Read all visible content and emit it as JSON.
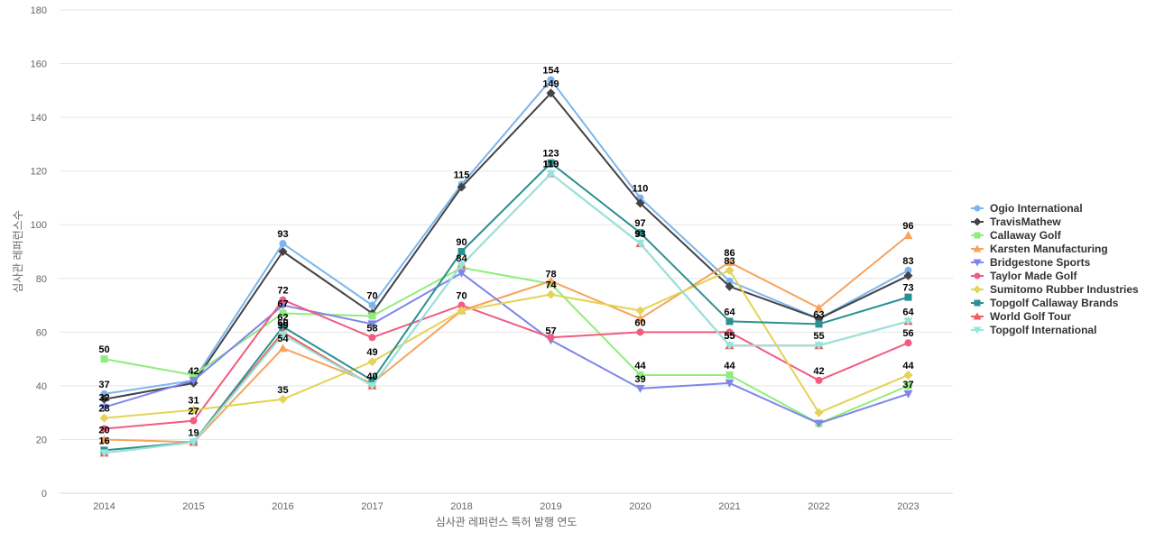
{
  "chart_data": {
    "type": "line",
    "xlabel": "심사관 레퍼런스 특허 발행 연도",
    "ylabel": "심사관 레퍼런스수",
    "ylim": [
      0,
      180
    ],
    "yticks": [
      0,
      20,
      40,
      60,
      80,
      100,
      120,
      140,
      160,
      180
    ],
    "categories": [
      "2014",
      "2015",
      "2016",
      "2017",
      "2018",
      "2019",
      "2020",
      "2021",
      "2022",
      "2023"
    ],
    "grid": true,
    "legend_position": "right",
    "series": [
      {
        "name": "Ogio International",
        "color": "#7cb5ec",
        "marker": "circle",
        "values": [
          37,
          42,
          93,
          70,
          115,
          154,
          110,
          79,
          65,
          83
        ],
        "labels": [
          true,
          true,
          true,
          true,
          true,
          true,
          true,
          false,
          false,
          true
        ]
      },
      {
        "name": "TravisMathew",
        "color": "#434348",
        "marker": "diamond",
        "values": [
          35,
          41,
          90,
          67,
          114,
          149,
          108,
          77,
          65,
          81
        ],
        "labels": [
          false,
          false,
          false,
          false,
          false,
          true,
          false,
          false,
          false,
          false
        ]
      },
      {
        "name": "Callaway Golf",
        "color": "#90ed7d",
        "marker": "square",
        "values": [
          50,
          44,
          67,
          66,
          84,
          78,
          44,
          44,
          26,
          40
        ],
        "labels": [
          true,
          false,
          true,
          false,
          true,
          true,
          true,
          true,
          false,
          false
        ]
      },
      {
        "name": "Karsten Manufacturing",
        "color": "#f7a35c",
        "marker": "triangle",
        "values": [
          20,
          19,
          54,
          41,
          68,
          79,
          65,
          86,
          69,
          96
        ],
        "labels": [
          true,
          true,
          true,
          false,
          false,
          false,
          false,
          true,
          false,
          true
        ]
      },
      {
        "name": "Bridgestone Sports",
        "color": "#8085e9",
        "marker": "triangle-down",
        "values": [
          32,
          42,
          70,
          63,
          82,
          57,
          39,
          41,
          26,
          37
        ],
        "labels": [
          true,
          false,
          false,
          false,
          false,
          true,
          true,
          false,
          false,
          true
        ]
      },
      {
        "name": "Taylor Made Golf",
        "color": "#f15c80",
        "marker": "circle",
        "values": [
          24,
          27,
          72,
          58,
          70,
          58,
          60,
          60,
          42,
          56
        ],
        "labels": [
          false,
          true,
          true,
          true,
          true,
          false,
          true,
          false,
          true,
          true
        ]
      },
      {
        "name": "Sumitomo Rubber Industries",
        "color": "#e4d354",
        "marker": "diamond",
        "values": [
          28,
          31,
          35,
          49,
          68,
          74,
          68,
          83,
          30,
          44
        ],
        "labels": [
          true,
          true,
          true,
          true,
          false,
          true,
          false,
          true,
          false,
          true
        ]
      },
      {
        "name": "Topgolf Callaway Brands",
        "color": "#2b908f",
        "marker": "square",
        "values": [
          16,
          19,
          62,
          42,
          90,
          123,
          97,
          64,
          63,
          73
        ],
        "labels": [
          true,
          false,
          true,
          false,
          true,
          true,
          true,
          true,
          true,
          true
        ]
      },
      {
        "name": "World Golf Tour",
        "color": "#f45b5b",
        "marker": "triangle",
        "values": [
          15,
          19,
          60,
          40,
          85,
          119,
          93,
          55,
          55,
          64
        ],
        "labels": [
          false,
          false,
          true,
          true,
          false,
          true,
          true,
          true,
          false,
          false
        ]
      },
      {
        "name": "Topgolf International",
        "color": "#91e8e1",
        "marker": "triangle-down",
        "values": [
          15,
          19,
          59,
          40,
          85,
          119,
          93,
          55,
          55,
          64
        ],
        "labels": [
          false,
          false,
          true,
          true,
          false,
          true,
          true,
          true,
          true,
          true
        ]
      }
    ]
  }
}
